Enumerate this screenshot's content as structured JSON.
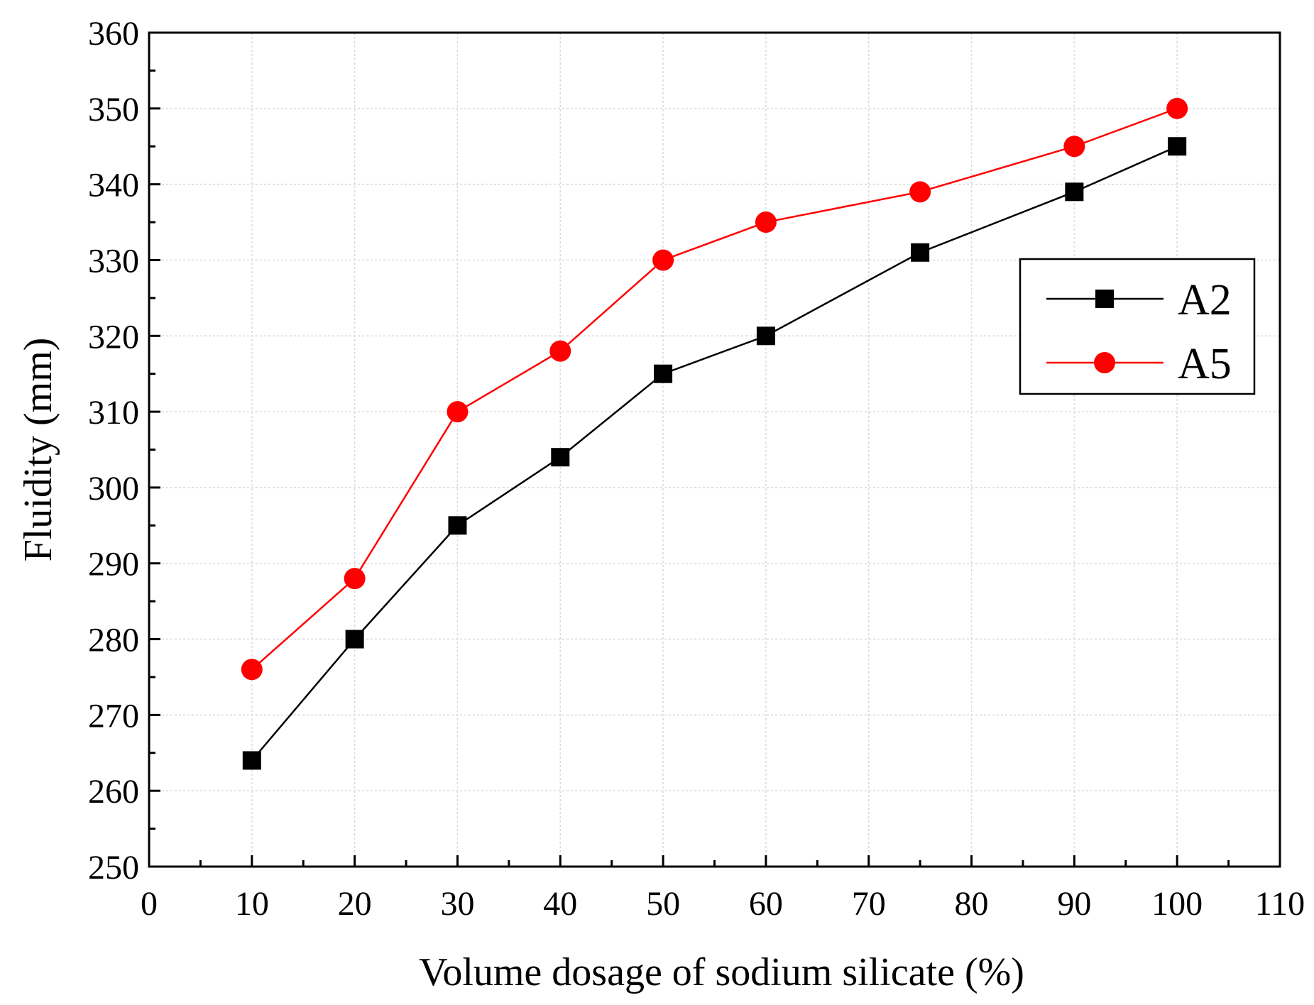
{
  "chart_data": {
    "type": "line",
    "title": "",
    "xlabel": "Volume dosage of sodium silicate (%)",
    "ylabel": "Fluidity (mm)",
    "xlim": [
      0,
      110
    ],
    "ylim": [
      250,
      360
    ],
    "x_ticks": [
      0,
      10,
      20,
      30,
      40,
      50,
      60,
      70,
      80,
      90,
      100,
      110
    ],
    "y_ticks": [
      250,
      260,
      270,
      280,
      290,
      300,
      310,
      320,
      330,
      340,
      350,
      360
    ],
    "grid": true,
    "legend_position": "right",
    "x": [
      10,
      20,
      30,
      40,
      50,
      60,
      75,
      90,
      100
    ],
    "series": [
      {
        "name": "A2",
        "marker": "square",
        "color": "#000000",
        "values": [
          264,
          280,
          295,
          304,
          315,
          320,
          331,
          339,
          345
        ]
      },
      {
        "name": "A5",
        "marker": "circle",
        "color": "#ff0000",
        "values": [
          276,
          288,
          310,
          318,
          330,
          335,
          339,
          345,
          350
        ]
      }
    ]
  }
}
